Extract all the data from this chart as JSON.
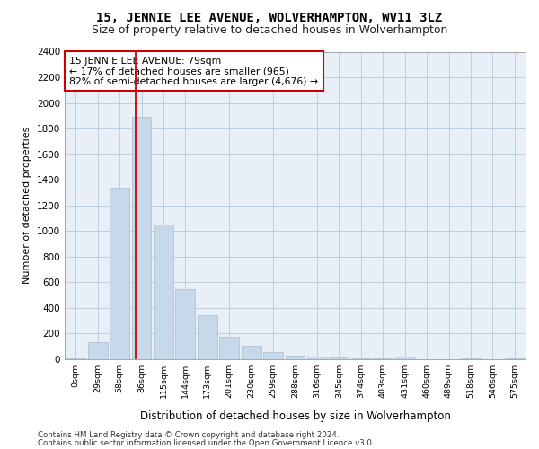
{
  "title": "15, JENNIE LEE AVENUE, WOLVERHAMPTON, WV11 3LZ",
  "subtitle": "Size of property relative to detached houses in Wolverhampton",
  "xlabel": "Distribution of detached houses by size in Wolverhampton",
  "ylabel": "Number of detached properties",
  "footer_line1": "Contains HM Land Registry data © Crown copyright and database right 2024.",
  "footer_line2": "Contains public sector information licensed under the Open Government Licence v3.0.",
  "annotation_line1": "15 JENNIE LEE AVENUE: 79sqm",
  "annotation_line2": "← 17% of detached houses are smaller (965)",
  "annotation_line3": "82% of semi-detached houses are larger (4,676) →",
  "bar_color": "#c8d8eb",
  "bar_edge_color": "#aabdd0",
  "vline_color": "#cc0000",
  "annotation_box_edge_color": "#cc0000",
  "categories": [
    "0sqm",
    "29sqm",
    "58sqm",
    "86sqm",
    "115sqm",
    "144sqm",
    "173sqm",
    "201sqm",
    "230sqm",
    "259sqm",
    "288sqm",
    "316sqm",
    "345sqm",
    "374sqm",
    "403sqm",
    "431sqm",
    "460sqm",
    "489sqm",
    "518sqm",
    "546sqm",
    "575sqm"
  ],
  "values": [
    5,
    130,
    1340,
    1890,
    1050,
    550,
    340,
    175,
    105,
    55,
    30,
    22,
    17,
    10,
    5,
    18,
    0,
    0,
    5,
    0,
    5
  ],
  "ylim": [
    0,
    2400
  ],
  "yticks": [
    0,
    200,
    400,
    600,
    800,
    1000,
    1200,
    1400,
    1600,
    1800,
    2000,
    2200,
    2400
  ],
  "vline_x_index": 2.75,
  "bg_color": "#ffffff",
  "plot_bg_color": "#e8eff6",
  "grid_color": "#b8c8d8",
  "title_fontsize": 10,
  "subtitle_fontsize": 9
}
